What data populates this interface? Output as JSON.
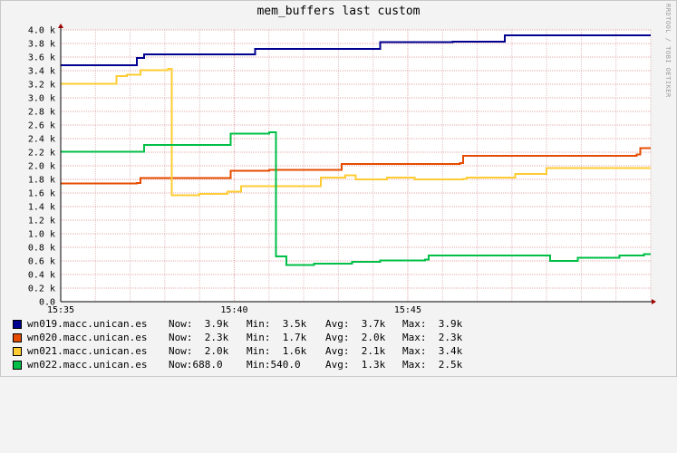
{
  "watermark": "RRDTOOL / TOBI OETIKER",
  "chart_data": {
    "type": "line",
    "title": "mem_buffers last custom",
    "xlabel": "",
    "ylabel": "",
    "x_range": [
      "15:35",
      "15:52"
    ],
    "x_ticks": [
      "15:35",
      "15:40",
      "15:45"
    ],
    "ylim": [
      0,
      4000
    ],
    "y_ticks": [
      "0.0",
      "0.2 k",
      "0.4 k",
      "0.6 k",
      "0.8 k",
      "1.0 k",
      "1.2 k",
      "1.4 k",
      "1.6 k",
      "1.8 k",
      "2.0 k",
      "2.2 k",
      "2.4 k",
      "2.6 k",
      "2.8 k",
      "3.0 k",
      "3.2 k",
      "3.4 k",
      "3.6 k",
      "3.8 k",
      "4.0 k"
    ],
    "grid": true,
    "legend_position": "bottom",
    "series": [
      {
        "name": "wn019.macc.unican.es",
        "color": "#000090",
        "now": "Now:  3.9k",
        "min": "Min:  3.5k",
        "avg": "Avg:  3.7k",
        "max": "Max:  3.9k",
        "points": [
          [
            "15:35",
            3480
          ],
          [
            "15:37",
            3480
          ],
          [
            "15:37.2",
            3590
          ],
          [
            "15:37.4",
            3640
          ],
          [
            "15:40.6",
            3720
          ],
          [
            "15:44.2",
            3820
          ],
          [
            "15:46.3",
            3830
          ],
          [
            "15:47.8",
            3920
          ],
          [
            "15:52",
            3920
          ]
        ]
      },
      {
        "name": "wn020.macc.unican.es",
        "color": "#e64c00",
        "now": "Now:  2.3k",
        "min": "Min:  1.7k",
        "avg": "Avg:  2.0k",
        "max": "Max:  2.3k",
        "points": [
          [
            "15:35",
            1740
          ],
          [
            "15:37.2",
            1750
          ],
          [
            "15:37.3",
            1820
          ],
          [
            "15:39.8",
            1820
          ],
          [
            "15:39.9",
            1930
          ],
          [
            "15:41",
            1940
          ],
          [
            "15:43",
            1940
          ],
          [
            "15:43.1",
            2030
          ],
          [
            "15:45.6",
            2030
          ],
          [
            "15:46.5",
            2040
          ],
          [
            "15:46.6",
            2150
          ],
          [
            "15:49.6",
            2150
          ],
          [
            "15:51.6",
            2170
          ],
          [
            "15:51.7",
            2260
          ],
          [
            "15:52",
            2260
          ]
        ]
      },
      {
        "name": "wn021.macc.unican.es",
        "color": "#ffcc33",
        "now": "Now:  2.0k",
        "min": "Min:  1.6k",
        "avg": "Avg:  2.1k",
        "max": "Max:  3.4k",
        "points": [
          [
            "15:35",
            3210
          ],
          [
            "15:36.5",
            3210
          ],
          [
            "15:36.6",
            3320
          ],
          [
            "15:36.9",
            3340
          ],
          [
            "15:37.3",
            3410
          ],
          [
            "15:38.1",
            3430
          ],
          [
            "15:38.2",
            1570
          ],
          [
            "15:39",
            1590
          ],
          [
            "15:39.8",
            1620
          ],
          [
            "15:40.2",
            1700
          ],
          [
            "15:42.4",
            1700
          ],
          [
            "15:42.5",
            1830
          ],
          [
            "15:43.2",
            1860
          ],
          [
            "15:43.5",
            1800
          ],
          [
            "15:44.4",
            1830
          ],
          [
            "15:45.2",
            1800
          ],
          [
            "15:46.6",
            1810
          ],
          [
            "15:46.7",
            1830
          ],
          [
            "15:48.1",
            1880
          ],
          [
            "15:49",
            1970
          ],
          [
            "15:52",
            1970
          ]
        ]
      },
      {
        "name": "wn022.macc.unican.es",
        "color": "#00bf47",
        "now": "Now:688.0",
        "min": "Min:540.0",
        "avg": "Avg:  1.3k",
        "max": "Max:  2.5k",
        "points": [
          [
            "15:35",
            2210
          ],
          [
            "15:37.3",
            2210
          ],
          [
            "15:37.4",
            2310
          ],
          [
            "15:39.8",
            2310
          ],
          [
            "15:39.9",
            2470
          ],
          [
            "15:41",
            2490
          ],
          [
            "15:41.2",
            670
          ],
          [
            "15:41.5",
            540
          ],
          [
            "15:42.3",
            560
          ],
          [
            "15:43.4",
            590
          ],
          [
            "15:44.2",
            610
          ],
          [
            "15:45.5",
            620
          ],
          [
            "15:45.6",
            680
          ],
          [
            "15:49",
            680
          ],
          [
            "15:49.1",
            600
          ],
          [
            "15:49.9",
            650
          ],
          [
            "15:51.1",
            680
          ],
          [
            "15:51.8",
            700
          ],
          [
            "15:52",
            700
          ]
        ]
      }
    ]
  }
}
